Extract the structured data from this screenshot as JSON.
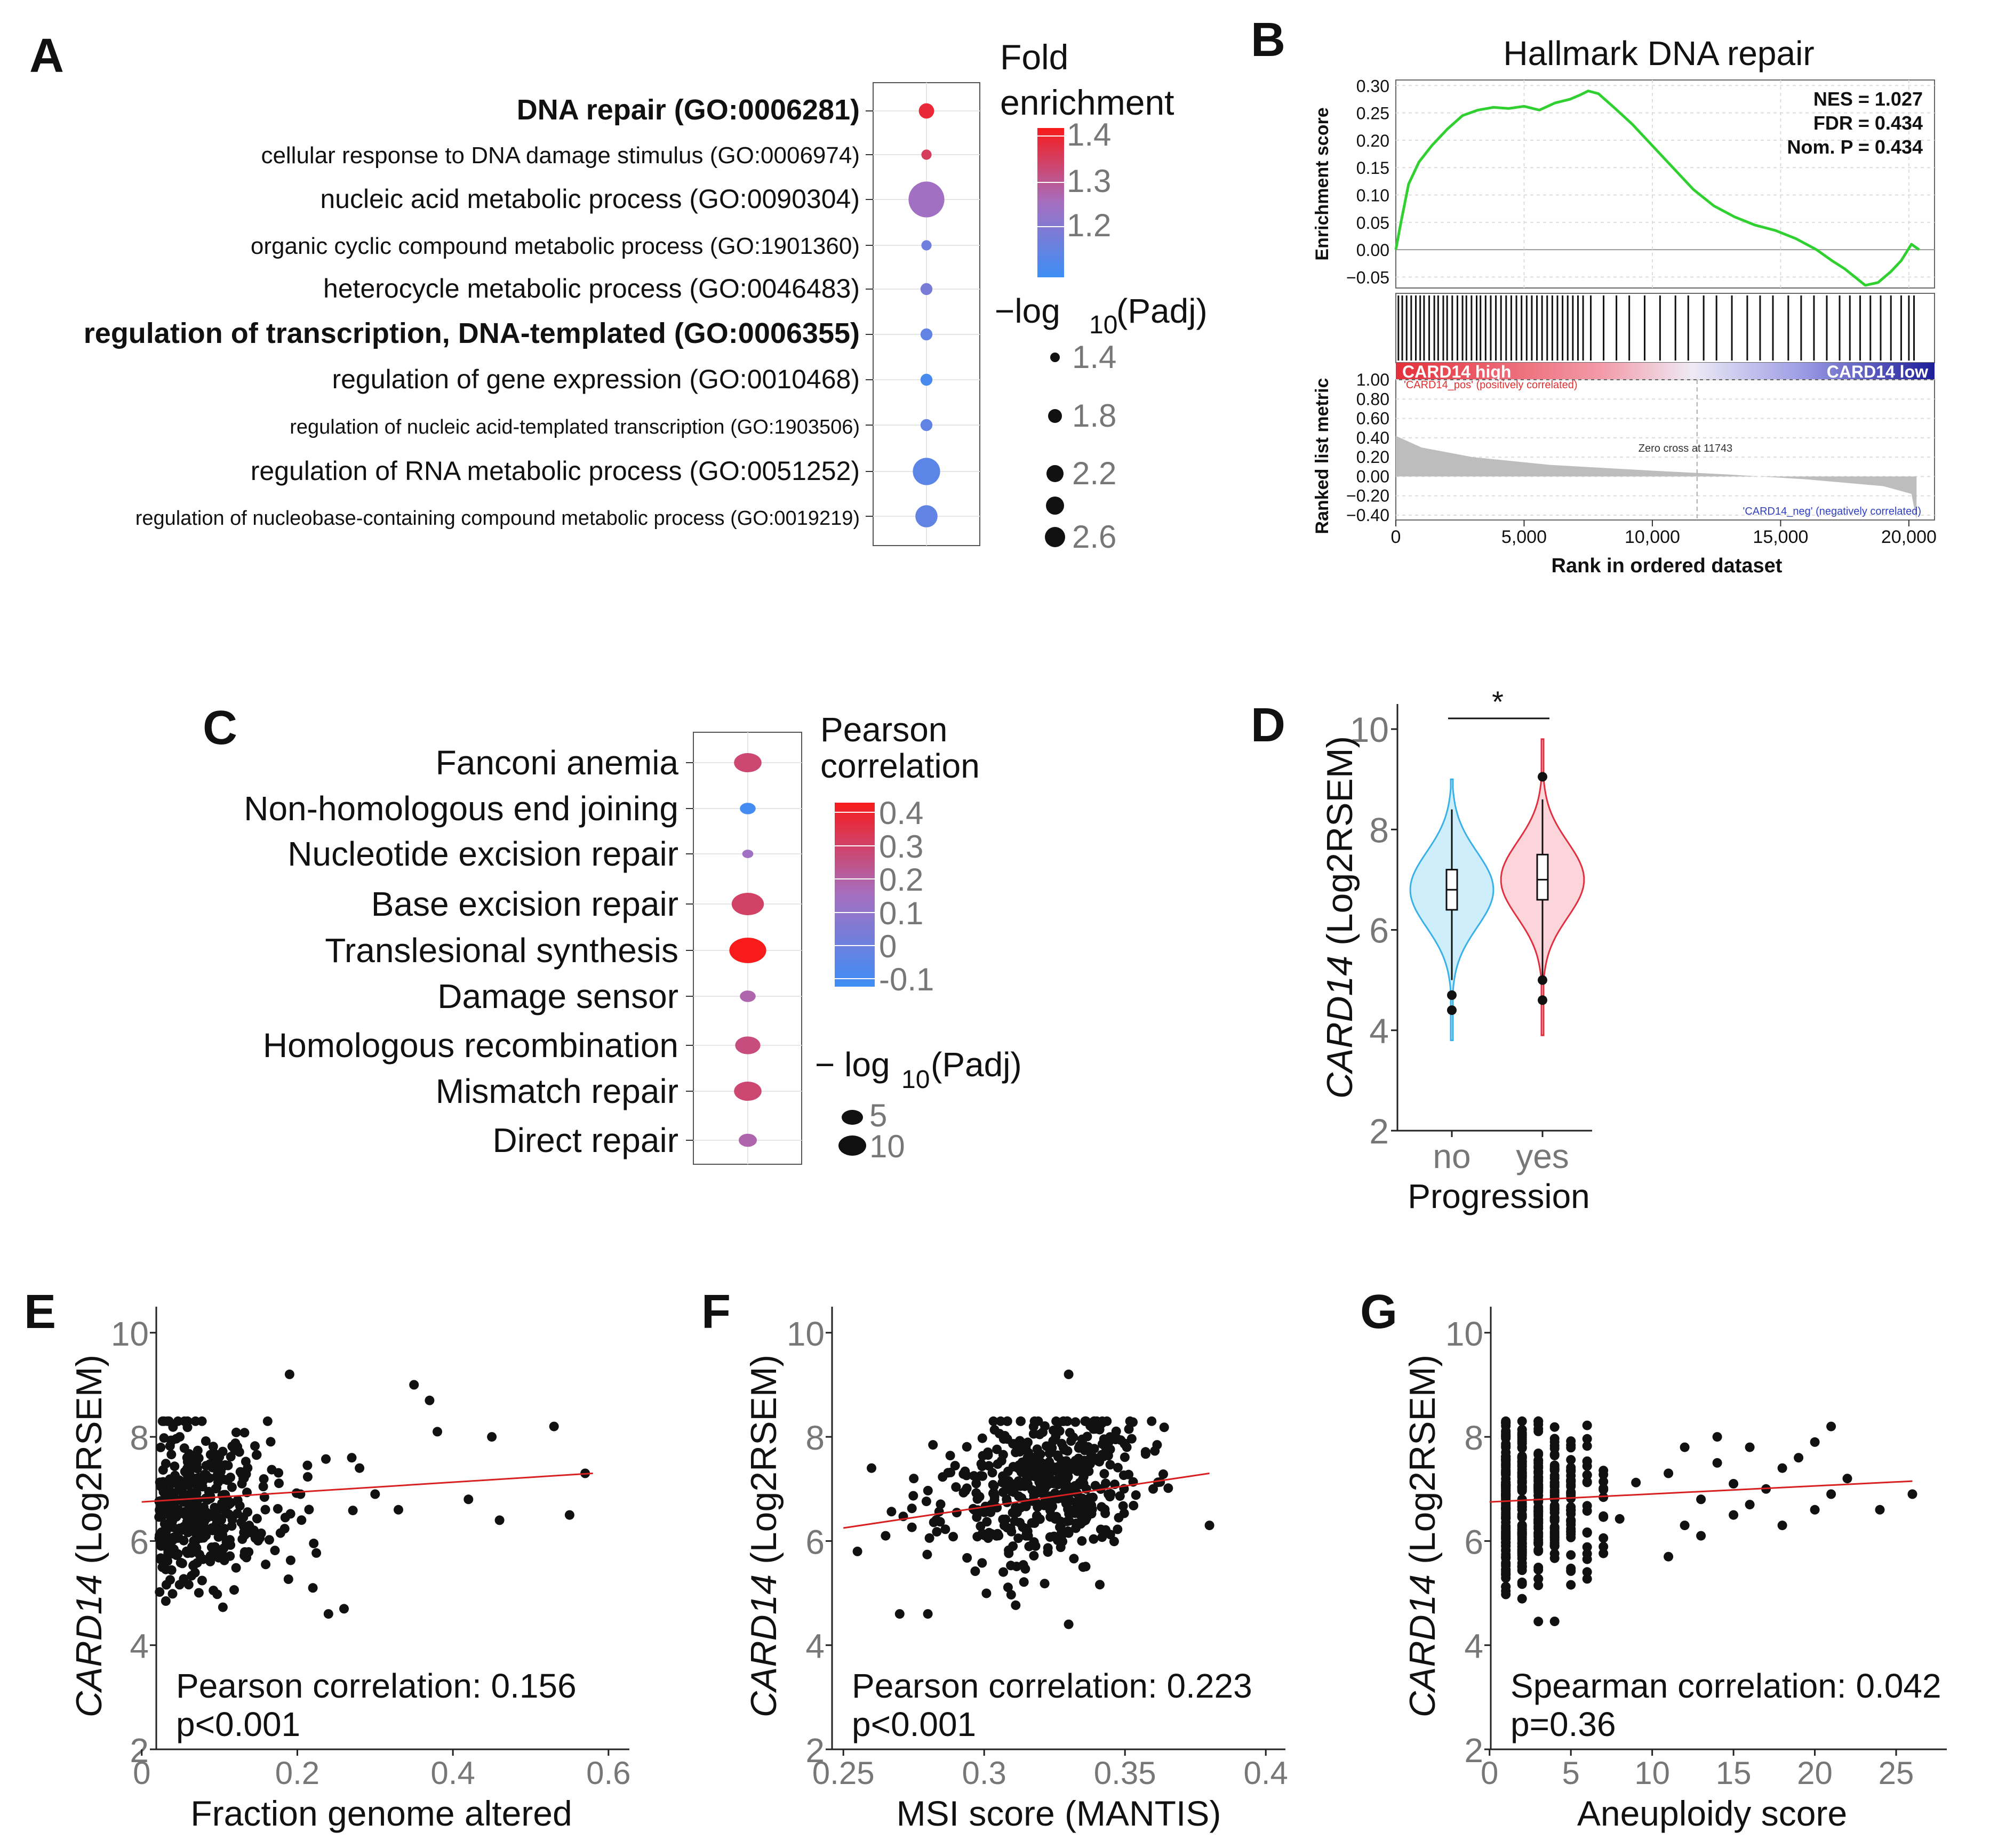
{
  "chart_data": [
    {
      "panel": "A",
      "type": "dot",
      "terms": [
        {
          "label": "DNA repair (GO:0006281)",
          "bold": true,
          "fold_enrichment": 1.42,
          "neg_log10_padj": 1.6
        },
        {
          "label": "cellular response to DNA damage stimulus (GO:0006974)",
          "bold": false,
          "fold_enrichment": 1.38,
          "neg_log10_padj": 1.3
        },
        {
          "label": "nucleic acid metabolic process (GO:0090304)",
          "bold": false,
          "fold_enrichment": 1.27,
          "neg_log10_padj": 2.8
        },
        {
          "label": "organic cyclic compound metabolic process (GO:1901360)",
          "bold": false,
          "fold_enrichment": 1.18,
          "neg_log10_padj": 1.3
        },
        {
          "label": "heterocycle metabolic process (GO:0046483)",
          "bold": false,
          "fold_enrichment": 1.2,
          "neg_log10_padj": 1.4
        },
        {
          "label": "regulation of transcription, DNA-templated (GO:0006355)",
          "bold": true,
          "fold_enrichment": 1.16,
          "neg_log10_padj": 1.4
        },
        {
          "label": "regulation of gene expression (GO:0010468)",
          "bold": false,
          "fold_enrichment": 1.12,
          "neg_log10_padj": 1.4
        },
        {
          "label": "regulation of nucleic acid-templated transcription (GO:1903506)",
          "bold": false,
          "fold_enrichment": 1.16,
          "neg_log10_padj": 1.4
        },
        {
          "label": "regulation of RNA metabolic process (GO:0051252)",
          "bold": false,
          "fold_enrichment": 1.15,
          "neg_log10_padj": 2.3
        },
        {
          "label": "regulation of nucleobase-containing compound metabolic process (GO:0019219)",
          "bold": false,
          "fold_enrichment": 1.16,
          "neg_log10_padj": 2.0
        }
      ],
      "color_legend": {
        "title_line1": "Fold",
        "title_line2": "enrichment",
        "range": [
          1.1,
          1.45
        ],
        "ticks": [
          "1.4",
          "1.3",
          "1.2"
        ]
      },
      "size_legend": {
        "title_main": "−log",
        "title_sub": "10",
        "title_tail": "(Padj)",
        "values": [
          "1.4",
          "1.8",
          "2.2",
          "2.6"
        ]
      }
    },
    {
      "panel": "B",
      "type": "line",
      "title": "Hallmark DNA repair",
      "ylabel_top": "Enrichment score",
      "ylabel_bottom": "Ranked list metric",
      "xlabel": "Rank in ordered dataset",
      "x_ticks": [
        "0",
        "5,000",
        "10,000",
        "15,000",
        "20,000"
      ],
      "es_ticks": [
        "0.30",
        "0.25",
        "0.20",
        "0.15",
        "0.10",
        "0.05",
        "0.00",
        "−0.05"
      ],
      "metric_ticks": [
        "1.00",
        "0.80",
        "0.60",
        "0.40",
        "0.20",
        "0.00",
        "−0.20",
        "−0.40"
      ],
      "stats": [
        "NES = 1.027",
        "FDR = 0.434",
        "Nom. P = 0.434"
      ],
      "xlim": [
        0,
        21000
      ],
      "ylim_es": [
        -0.07,
        0.31
      ],
      "ylim_metric": [
        -0.45,
        1.0
      ],
      "es_x": [
        0,
        200,
        500,
        900,
        1400,
        2000,
        2600,
        3200,
        3800,
        4400,
        5000,
        5600,
        6200,
        6800,
        7200,
        7500,
        7900,
        8500,
        9200,
        10000,
        10800,
        11600,
        12400,
        13200,
        14000,
        14800,
        15600,
        16400,
        17000,
        17500,
        17900,
        18300,
        18800,
        19300,
        19700,
        20100,
        20400
      ],
      "es_y": [
        0.0,
        0.05,
        0.12,
        0.16,
        0.19,
        0.22,
        0.245,
        0.255,
        0.26,
        0.258,
        0.262,
        0.255,
        0.268,
        0.275,
        0.283,
        0.29,
        0.285,
        0.26,
        0.23,
        0.19,
        0.15,
        0.11,
        0.08,
        0.06,
        0.045,
        0.035,
        0.02,
        0.0,
        -0.02,
        -0.035,
        -0.05,
        -0.065,
        -0.06,
        -0.04,
        -0.02,
        0.01,
        0.0
      ],
      "metric_x": [
        0,
        1000,
        3000,
        6000,
        10000,
        13000,
        16000,
        19000,
        20100,
        20300
      ],
      "metric_y": [
        0.42,
        0.3,
        0.2,
        0.12,
        0.06,
        0.02,
        -0.03,
        -0.1,
        -0.18,
        -0.45
      ],
      "hits": [
        100,
        250,
        420,
        600,
        780,
        950,
        1100,
        1300,
        1500,
        1650,
        1850,
        2000,
        2200,
        2400,
        2600,
        2750,
        2950,
        3150,
        3300,
        3500,
        3700,
        3900,
        4100,
        4300,
        4500,
        4700,
        4900,
        5100,
        5300,
        5500,
        5700,
        5900,
        6100,
        6300,
        6500,
        6700,
        6900,
        7100,
        7300,
        7600,
        8100,
        8600,
        9100,
        9700,
        10300,
        10900,
        11400,
        12000,
        12500,
        13100,
        13700,
        14200,
        14700,
        15300,
        15800,
        16300,
        16800,
        17300,
        17700,
        18100,
        18500,
        18900,
        19300,
        19700,
        20000,
        20200
      ],
      "bar_left": "CARD14 high",
      "bar_right": "CARD14 low",
      "pos_label": "'CARD14_pos' (positively correlated)",
      "neg_label": "'CARD14_neg' (negatively correlated)",
      "zero_cross": "Zero cross at 11743",
      "zero_cross_x": 11743
    },
    {
      "panel": "C",
      "type": "dot",
      "terms": [
        {
          "label": "Fanconi anemia",
          "pearson": 0.3,
          "neg_log10_padj": 9
        },
        {
          "label": "Non-homologous end joining",
          "pearson": -0.1,
          "neg_log10_padj": 4
        },
        {
          "label": "Nucleotide excision repair",
          "pearson": 0.15,
          "neg_log10_padj": 2
        },
        {
          "label": "Base excision repair",
          "pearson": 0.32,
          "neg_log10_padj": 11
        },
        {
          "label": "Translesional synthesis",
          "pearson": 0.45,
          "neg_log10_padj": 13
        },
        {
          "label": "Damage sensor",
          "pearson": 0.2,
          "neg_log10_padj": 4
        },
        {
          "label": "Homologous recombination",
          "pearson": 0.28,
          "neg_log10_padj": 8
        },
        {
          "label": "Mismatch repair",
          "pearson": 0.3,
          "neg_log10_padj": 9
        },
        {
          "label": "Direct repair",
          "pearson": 0.2,
          "neg_log10_padj": 5
        }
      ],
      "color_legend": {
        "title_line1": "Pearson",
        "title_line2": "correlation",
        "range": [
          -0.12,
          0.45
        ],
        "ticks": [
          "0.4",
          "0.3",
          "0.2",
          "0.1",
          "0",
          "-0.1"
        ]
      },
      "size_legend": {
        "title_main": "− log",
        "title_sub": "10",
        "title_tail": "(Padj)",
        "values": [
          "5",
          "10"
        ]
      }
    },
    {
      "panel": "D",
      "type": "violin",
      "ylabel_italic": "CARD14",
      "ylabel_rest": " (Log2RSEM)",
      "xlabel": "Progression",
      "categories": [
        "no",
        "yes"
      ],
      "y_ticks": [
        "2",
        "4",
        "6",
        "8",
        "10"
      ],
      "ylim": [
        2,
        10.5
      ],
      "significance": "*",
      "groups": [
        {
          "name": "no",
          "median": 6.8,
          "q1": 6.4,
          "q3": 7.2,
          "whisker_low": 5.0,
          "whisker_high": 8.4,
          "min": 3.8,
          "max": 9.0,
          "outliers": [
            4.7,
            4.4
          ],
          "color": "#3ab0e8",
          "fill": "#cdeefa"
        },
        {
          "name": "yes",
          "median": 7.0,
          "q1": 6.6,
          "q3": 7.5,
          "whisker_low": 5.0,
          "whisker_high": 8.6,
          "min": 3.9,
          "max": 9.8,
          "outliers": [
            9.05,
            4.6,
            5.0
          ],
          "color": "#e03040",
          "fill": "#fbd5da"
        }
      ]
    },
    {
      "panel": "E",
      "type": "scatter",
      "xlabel": "Fraction genome altered",
      "ylabel_italic": "CARD14",
      "ylabel_rest": " (Log2RSEM)",
      "x_ticks": [
        "0",
        "0.2",
        "0.4",
        "0.6"
      ],
      "x_tick_vals": [
        0,
        0.2,
        0.4,
        0.6
      ],
      "y_ticks": [
        "2",
        "4",
        "6",
        "8",
        "10"
      ],
      "xlim": [
        -0.03,
        0.62
      ],
      "ylim": [
        2,
        10.5
      ],
      "stat_line1": "Pearson correlation: 0.156",
      "stat_line2": "p<0.001",
      "fit": [
        [
          0,
          6.75
        ],
        [
          0.58,
          7.3
        ]
      ],
      "cloud": {
        "x_center": 0.07,
        "x_spread": 0.09,
        "y_mean": 6.7,
        "y_sd": 0.75,
        "n": 480,
        "seed": 11
      },
      "extra_points": [
        [
          0.35,
          9.0
        ],
        [
          0.37,
          8.7
        ],
        [
          0.38,
          8.1
        ],
        [
          0.45,
          8.0
        ],
        [
          0.53,
          8.2
        ],
        [
          0.55,
          6.5
        ],
        [
          0.57,
          7.3
        ],
        [
          0.46,
          6.4
        ],
        [
          0.42,
          6.8
        ],
        [
          0.3,
          6.9
        ],
        [
          0.28,
          7.4
        ],
        [
          0.24,
          4.6
        ],
        [
          0.26,
          4.7
        ],
        [
          0.22,
          5.1
        ],
        [
          0.19,
          9.2
        ],
        [
          0.33,
          6.6
        ],
        [
          0.27,
          7.6
        ]
      ]
    },
    {
      "panel": "F",
      "type": "scatter",
      "xlabel": "MSI score (MANTIS)",
      "ylabel_italic": "CARD14",
      "ylabel_rest": " (Log2RSEM)",
      "x_ticks": [
        "0.25",
        "0.3",
        "0.35",
        "0.4"
      ],
      "x_tick_vals": [
        0.25,
        0.3,
        0.35,
        0.4
      ],
      "y_ticks": [
        "2",
        "4",
        "6",
        "8",
        "10"
      ],
      "xlim": [
        0.235,
        0.41
      ],
      "ylim": [
        2,
        10.5
      ],
      "stat_line1": "Pearson correlation: 0.223",
      "stat_line2": "p<0.001",
      "fit": [
        [
          0.25,
          6.25
        ],
        [
          0.38,
          7.3
        ]
      ],
      "cloud": {
        "x_center": 0.32,
        "x_spread": 0.018,
        "y_mean": 6.9,
        "y_sd": 0.75,
        "n": 480,
        "seed": 23
      },
      "extra_points": [
        [
          0.26,
          7.4
        ],
        [
          0.255,
          5.8
        ],
        [
          0.27,
          4.6
        ],
        [
          0.28,
          4.6
        ],
        [
          0.38,
          6.3
        ],
        [
          0.36,
          7.0
        ],
        [
          0.33,
          9.2
        ],
        [
          0.34,
          8.3
        ],
        [
          0.33,
          4.4
        ],
        [
          0.265,
          6.1
        ],
        [
          0.275,
          7.2
        ]
      ]
    },
    {
      "panel": "G",
      "type": "scatter",
      "xlabel": "Aneuploidy score",
      "ylabel_italic": "CARD14",
      "ylabel_rest": " (Log2RSEM)",
      "x_ticks": [
        "0",
        "5",
        "10",
        "15",
        "20",
        "25"
      ],
      "x_tick_vals": [
        0,
        5,
        10,
        15,
        20,
        25
      ],
      "y_ticks": [
        "2",
        "4",
        "6",
        "8",
        "10"
      ],
      "xlim": [
        -1.5,
        27
      ],
      "ylim": [
        2,
        10.5
      ],
      "stat_line1": "Spearman correlation: 0.042",
      "stat_line2": "p=0.36",
      "fit": [
        [
          0,
          6.75
        ],
        [
          26,
          7.15
        ]
      ],
      "discrete": {
        "max_x": 10,
        "n": 520,
        "y_mean": 6.8,
        "y_sd": 0.8,
        "seed": 37
      },
      "extra_points": [
        [
          11,
          7.3
        ],
        [
          12,
          6.3
        ],
        [
          13,
          6.8
        ],
        [
          14,
          7.5
        ],
        [
          14,
          8.0
        ],
        [
          15,
          7.1
        ],
        [
          15,
          6.5
        ],
        [
          16,
          7.8
        ],
        [
          17,
          7.0
        ],
        [
          18,
          6.3
        ],
        [
          19,
          7.6
        ],
        [
          20,
          6.6
        ],
        [
          20,
          7.9
        ],
        [
          21,
          8.2
        ],
        [
          21,
          6.9
        ],
        [
          22,
          7.2
        ],
        [
          24,
          6.6
        ],
        [
          26,
          6.9
        ],
        [
          11,
          5.7
        ],
        [
          12,
          7.8
        ],
        [
          13,
          6.1
        ],
        [
          16,
          6.7
        ],
        [
          18,
          7.4
        ]
      ]
    }
  ]
}
